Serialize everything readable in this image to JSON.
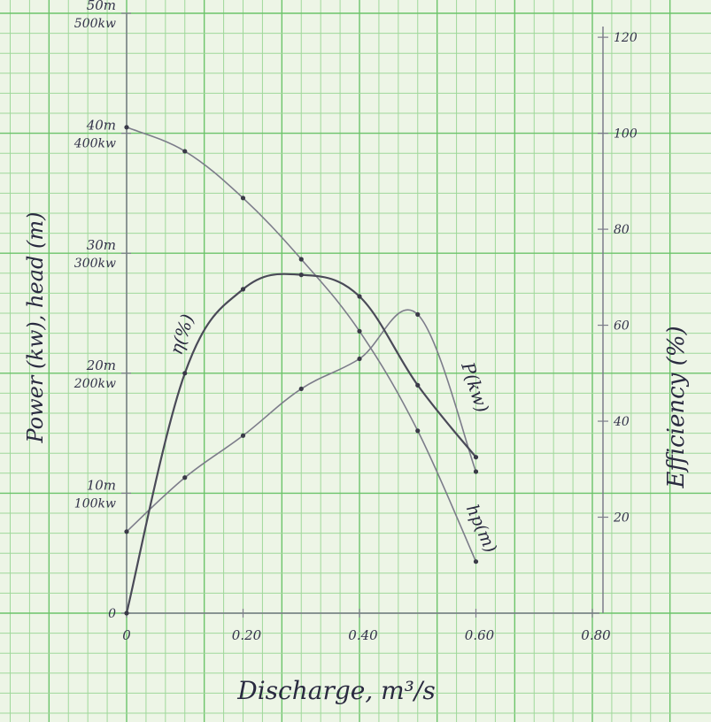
{
  "colors": {
    "paper": "#edf5e6",
    "grid_minor": "#9fd89a",
    "grid_major": "#6cc46a",
    "ink_dark": "#4a4a58",
    "ink_light": "#7c7c8a",
    "text": "#2a2a40"
  },
  "chart_data": {
    "type": "line",
    "xlabel": "Discharge, m³/s",
    "ylabel_left": "Power (kw), head (m)",
    "ylabel_right": "Efficiency (%)",
    "xlim": [
      0,
      0.8
    ],
    "ylim_left": [
      0,
      50
    ],
    "ylim_right": [
      0,
      125
    ],
    "grid": true,
    "x_ticks": [
      {
        "value": 0,
        "label": "0"
      },
      {
        "value": 0.2,
        "label": "0.20"
      },
      {
        "value": 0.4,
        "label": "0.40"
      },
      {
        "value": 0.6,
        "label": "0.60"
      },
      {
        "value": 0.8,
        "label": "0.80"
      }
    ],
    "left_ticks": [
      {
        "value": 0,
        "label_head": "0",
        "label_power": ""
      },
      {
        "value": 10,
        "label_head": "10m",
        "label_power": "100kw"
      },
      {
        "value": 20,
        "label_head": "20m",
        "label_power": "200kw"
      },
      {
        "value": 30,
        "label_head": "30m",
        "label_power": "300kw"
      },
      {
        "value": 40,
        "label_head": "40m",
        "label_power": "400kw"
      },
      {
        "value": 50,
        "label_head": "50m",
        "label_power": "500kw"
      }
    ],
    "right_ticks": [
      {
        "value": 20,
        "label": "20"
      },
      {
        "value": 40,
        "label": "40"
      },
      {
        "value": 60,
        "label": "60"
      },
      {
        "value": 80,
        "label": "80"
      },
      {
        "value": 100,
        "label": "100"
      },
      {
        "value": 120,
        "label": "120"
      }
    ],
    "series": [
      {
        "name": "hp(m)",
        "axis": "left",
        "x": [
          0,
          0.1,
          0.2,
          0.3,
          0.4,
          0.5,
          0.6
        ],
        "y": [
          40.5,
          38.5,
          34.6,
          29.5,
          23.5,
          15.2,
          4.3
        ]
      },
      {
        "name": "P(kw)",
        "axis": "left",
        "x": [
          0,
          0.1,
          0.2,
          0.3,
          0.4,
          0.5,
          0.6
        ],
        "y": [
          6.8,
          11.3,
          14.8,
          18.7,
          21.2,
          24.9,
          11.8
        ]
      },
      {
        "name": "η(%)",
        "axis": "right",
        "x": [
          0,
          0.1,
          0.2,
          0.3,
          0.4,
          0.5,
          0.6
        ],
        "y": [
          0,
          50,
          67.5,
          70.5,
          66,
          47.5,
          32.5
        ]
      }
    ]
  }
}
